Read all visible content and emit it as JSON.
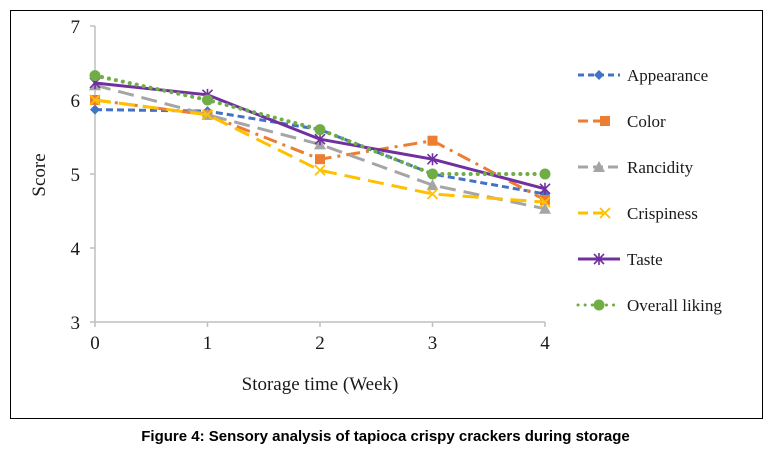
{
  "chart_data": {
    "type": "line",
    "title": "",
    "xlabel": "Storage time (Week)",
    "ylabel": "Score",
    "x": [
      0,
      1,
      2,
      3,
      4
    ],
    "xlim": [
      0,
      4
    ],
    "ylim": [
      3,
      7
    ],
    "xticks": [
      "0",
      "1",
      "2",
      "3",
      "4"
    ],
    "yticks": [
      "3",
      "4",
      "5",
      "6",
      "7"
    ],
    "grid": false,
    "legend_position": "right",
    "series": [
      {
        "name": "Appearance",
        "values": [
          5.87,
          5.85,
          5.6,
          5.0,
          4.73
        ],
        "color": "#4472C4",
        "dash": "dash",
        "marker": "diamond"
      },
      {
        "name": "Color",
        "values": [
          6.0,
          5.8,
          5.2,
          5.45,
          4.65
        ],
        "color": "#ED7D31",
        "dash": "dashdot",
        "marker": "square"
      },
      {
        "name": "Rancidity",
        "values": [
          6.2,
          5.8,
          5.4,
          4.85,
          4.53
        ],
        "color": "#A5A5A5",
        "dash": "longdash",
        "marker": "triangle"
      },
      {
        "name": "Crispiness",
        "values": [
          6.0,
          5.8,
          5.05,
          4.73,
          4.62
        ],
        "color": "#FFC000",
        "dash": "longdash",
        "marker": "x"
      },
      {
        "name": "Taste",
        "values": [
          6.23,
          6.07,
          5.47,
          5.2,
          4.8
        ],
        "color": "#7030A0",
        "dash": "solid",
        "marker": "star"
      },
      {
        "name": "Overall liking",
        "values": [
          6.33,
          6.0,
          5.6,
          5.0,
          5.0
        ],
        "color": "#70AD47",
        "dash": "dot",
        "marker": "circle"
      }
    ]
  },
  "caption": "Figure 4: Sensory analysis of tapioca crispy crackers during storage"
}
